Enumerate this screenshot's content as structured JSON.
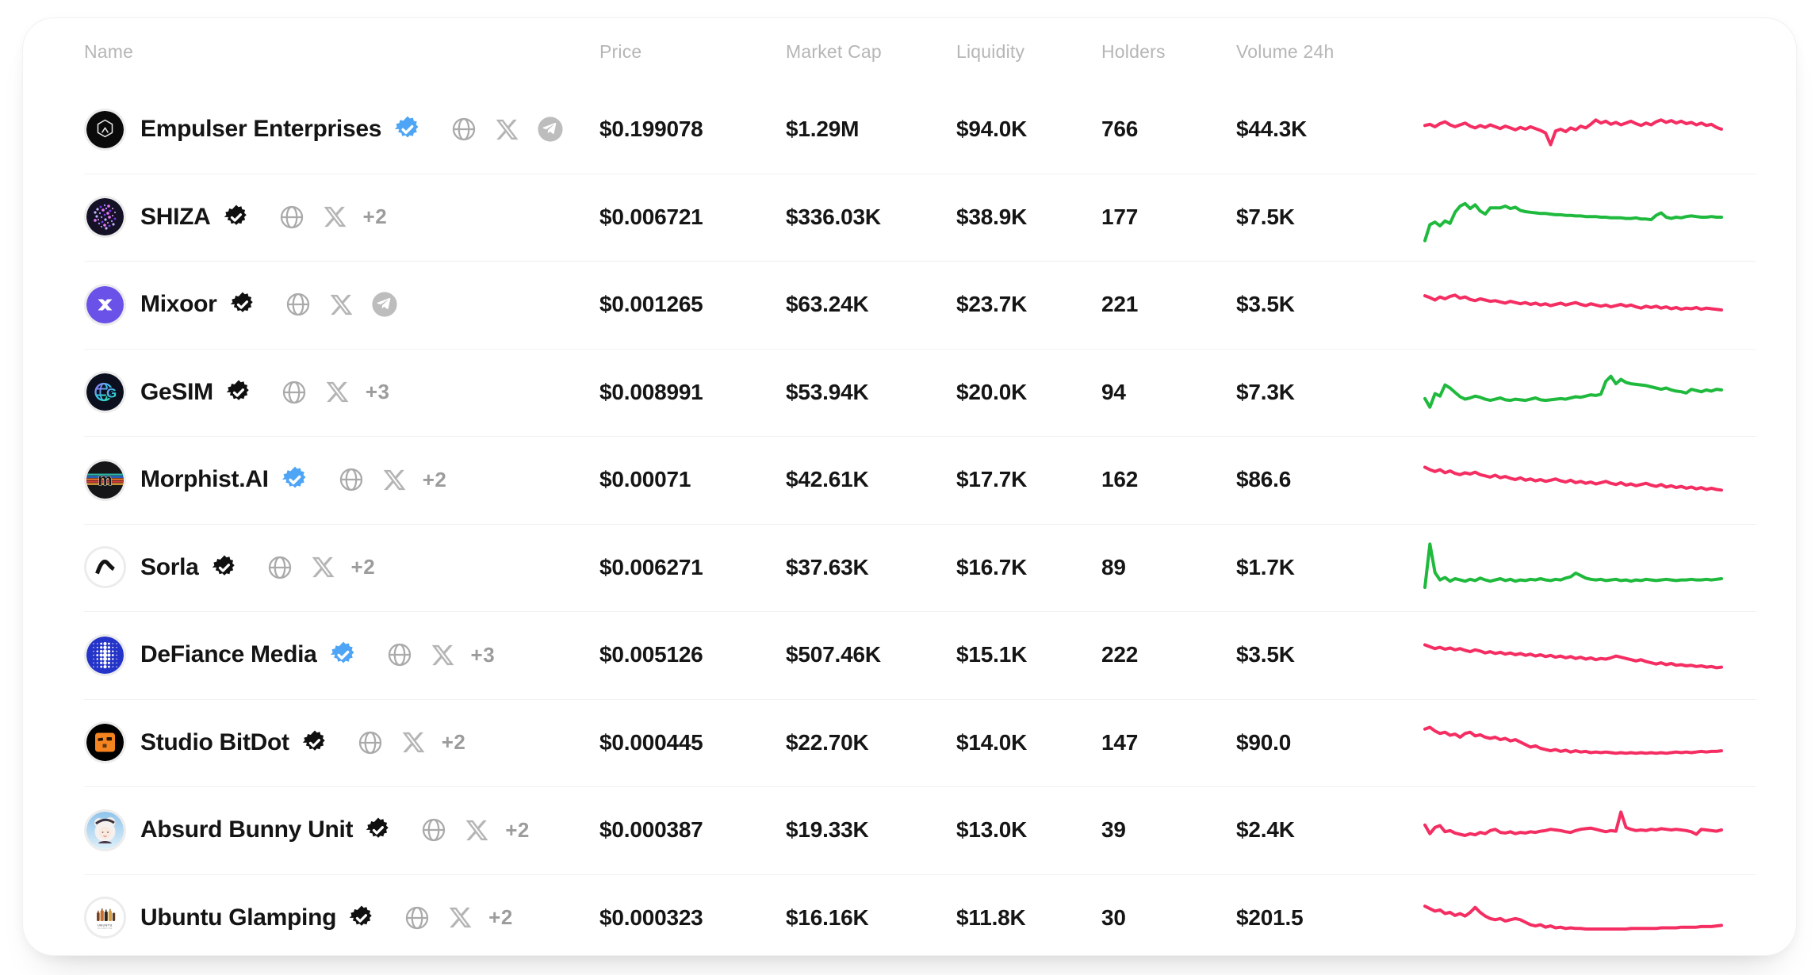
{
  "colors": {
    "pink": "#F42E62",
    "green": "#1FBA3D",
    "verified_blue": "#4FA5F5",
    "verified_black": "#101010",
    "header_text": "#B6B6B6",
    "row_text": "#151515",
    "icon_gray": "#AAAAAA",
    "divider": "#F1F1F1"
  },
  "icons": {
    "website": "globe-icon",
    "x": "x-logo-icon",
    "telegram": "telegram-icon",
    "verified_blue": "verified-badge-blue-icon",
    "verified_black": "verified-badge-black-icon"
  },
  "table": {
    "columns": [
      {
        "key": "name",
        "label": "Name"
      },
      {
        "key": "price",
        "label": "Price"
      },
      {
        "key": "market_cap",
        "label": "Market Cap"
      },
      {
        "key": "liquidity",
        "label": "Liquidity"
      },
      {
        "key": "holders",
        "label": "Holders"
      },
      {
        "key": "volume_24h",
        "label": "Volume 24h"
      },
      {
        "key": "chart",
        "label": ""
      }
    ],
    "rows": [
      {
        "name": "Empulser Enterprises",
        "avatar": "empulser",
        "verified": "blue",
        "socials": [
          "website",
          "x",
          "telegram"
        ],
        "more": "",
        "price": "$0.199078",
        "market_cap": "$1.29M",
        "liquidity": "$94.0K",
        "holders": "766",
        "volume_24h": "$44.3K",
        "trend": "down"
      },
      {
        "name": "SHIZA",
        "avatar": "shiza",
        "verified": "black",
        "socials": [
          "website",
          "x"
        ],
        "more": "+2",
        "price": "$0.006721",
        "market_cap": "$336.03K",
        "liquidity": "$38.9K",
        "holders": "177",
        "volume_24h": "$7.5K",
        "trend": "up"
      },
      {
        "name": "Mixoor",
        "avatar": "mixoor",
        "verified": "black",
        "socials": [
          "website",
          "x",
          "telegram"
        ],
        "more": "",
        "price": "$0.001265",
        "market_cap": "$63.24K",
        "liquidity": "$23.7K",
        "holders": "221",
        "volume_24h": "$3.5K",
        "trend": "down"
      },
      {
        "name": "GeSIM",
        "avatar": "gesim",
        "verified": "black",
        "socials": [
          "website",
          "x"
        ],
        "more": "+3",
        "price": "$0.008991",
        "market_cap": "$53.94K",
        "liquidity": "$20.0K",
        "holders": "94",
        "volume_24h": "$7.3K",
        "trend": "up"
      },
      {
        "name": "Morphist.AI",
        "avatar": "morphist",
        "verified": "blue",
        "socials": [
          "website",
          "x"
        ],
        "more": "+2",
        "price": "$0.00071",
        "market_cap": "$42.61K",
        "liquidity": "$17.7K",
        "holders": "162",
        "volume_24h": "$86.6",
        "trend": "down"
      },
      {
        "name": "Sorla",
        "avatar": "sorla",
        "verified": "black",
        "socials": [
          "website",
          "x"
        ],
        "more": "+2",
        "price": "$0.006271",
        "market_cap": "$37.63K",
        "liquidity": "$16.7K",
        "holders": "89",
        "volume_24h": "$1.7K",
        "trend": "up"
      },
      {
        "name": "DeFiance Media",
        "avatar": "defiance",
        "verified": "blue",
        "socials": [
          "website",
          "x"
        ],
        "more": "+3",
        "price": "$0.005126",
        "market_cap": "$507.46K",
        "liquidity": "$15.1K",
        "holders": "222",
        "volume_24h": "$3.5K",
        "trend": "down"
      },
      {
        "name": "Studio BitDot",
        "avatar": "studiobitdot",
        "verified": "black",
        "socials": [
          "website",
          "x"
        ],
        "more": "+2",
        "price": "$0.000445",
        "market_cap": "$22.70K",
        "liquidity": "$14.0K",
        "holders": "147",
        "volume_24h": "$90.0",
        "trend": "down"
      },
      {
        "name": "Absurd Bunny Unit",
        "avatar": "absurdbunny",
        "verified": "black",
        "socials": [
          "website",
          "x"
        ],
        "more": "+2",
        "price": "$0.000387",
        "market_cap": "$19.33K",
        "liquidity": "$13.0K",
        "holders": "39",
        "volume_24h": "$2.4K",
        "trend": "down"
      },
      {
        "name": "Ubuntu Glamping",
        "avatar": "ubuntuglamping",
        "verified": "black",
        "socials": [
          "website",
          "x"
        ],
        "more": "+2",
        "price": "$0.000323",
        "market_cap": "$16.16K",
        "liquidity": "$11.8K",
        "holders": "30",
        "volume_24h": "$201.5",
        "trend": "down"
      }
    ]
  },
  "chart_data": {
    "type": "line",
    "note": "24h price sparklines, no axes or labels shown",
    "series": [
      {
        "name": "Empulser Enterprises",
        "color": "#F42E62",
        "values": [
          56,
          58,
          54,
          59,
          62,
          57,
          54,
          57,
          60,
          55,
          52,
          56,
          53,
          57,
          54,
          51,
          55,
          52,
          49,
          53,
          50,
          54,
          51,
          48,
          44,
          25,
          47,
          50,
          46,
          52,
          49,
          55,
          52,
          58,
          65,
          60,
          63,
          58,
          61,
          57,
          60,
          63,
          59,
          56,
          60,
          57,
          62,
          65,
          61,
          64,
          60,
          63,
          59,
          61,
          57,
          60,
          56,
          58,
          53,
          50
        ]
      },
      {
        "name": "SHIZA",
        "color": "#1FBA3D",
        "values": [
          12,
          38,
          42,
          36,
          44,
          40,
          58,
          68,
          72,
          64,
          70,
          60,
          55,
          65,
          65,
          65,
          68,
          64,
          66,
          61,
          59,
          58,
          57,
          56,
          56,
          55,
          54,
          54,
          53,
          53,
          52,
          52,
          51,
          51,
          51,
          50,
          50,
          49,
          49,
          49,
          48,
          48,
          49,
          47,
          47,
          46,
          53,
          57,
          50,
          48,
          50,
          49,
          51,
          52,
          51,
          50,
          50,
          51,
          50,
          50
        ]
      },
      {
        "name": "Mixoor",
        "color": "#F42E62",
        "values": [
          64,
          61,
          57,
          62,
          59,
          63,
          65,
          60,
          62,
          58,
          56,
          59,
          57,
          55,
          56,
          54,
          52,
          55,
          53,
          51,
          53,
          50,
          52,
          49,
          51,
          48,
          50,
          52,
          49,
          51,
          53,
          50,
          48,
          51,
          49,
          47,
          49,
          46,
          48,
          50,
          47,
          49,
          46,
          44,
          47,
          45,
          47,
          44,
          46,
          43,
          45,
          42,
          44,
          43,
          45,
          42,
          44,
          43,
          42,
          41
        ]
      },
      {
        "name": "GeSIM",
        "color": "#1FBA3D",
        "values": [
          40,
          26,
          48,
          44,
          62,
          57,
          50,
          43,
          39,
          41,
          44,
          42,
          39,
          37,
          39,
          41,
          38,
          37,
          39,
          38,
          37,
          39,
          41,
          38,
          37,
          38,
          39,
          40,
          39,
          41,
          43,
          42,
          44,
          46,
          45,
          47,
          68,
          76,
          64,
          71,
          66,
          64,
          63,
          62,
          61,
          59,
          57,
          55,
          57,
          54,
          52,
          51,
          49,
          55,
          53,
          51,
          54,
          52,
          55,
          54
        ]
      },
      {
        "name": "Morphist.AI",
        "color": "#F42E62",
        "values": [
          70,
          66,
          63,
          66,
          61,
          64,
          60,
          58,
          61,
          59,
          62,
          58,
          56,
          54,
          57,
          53,
          55,
          52,
          50,
          53,
          49,
          51,
          48,
          50,
          47,
          49,
          51,
          48,
          46,
          49,
          45,
          47,
          44,
          46,
          43,
          45,
          47,
          44,
          42,
          45,
          41,
          43,
          40,
          42,
          44,
          41,
          39,
          42,
          38,
          40,
          37,
          39,
          36,
          38,
          35,
          37,
          34,
          36,
          34,
          33
        ]
      },
      {
        "name": "Sorla",
        "color": "#1FBA3D",
        "values": [
          18,
          88,
          42,
          30,
          34,
          28,
          32,
          30,
          28,
          31,
          29,
          33,
          30,
          28,
          30,
          32,
          29,
          31,
          28,
          30,
          29,
          31,
          30,
          32,
          30,
          29,
          31,
          30,
          33,
          35,
          41,
          37,
          33,
          31,
          30,
          31,
          29,
          30,
          31,
          29,
          30,
          28,
          30,
          29,
          31,
          30,
          29,
          30,
          31,
          30,
          29,
          30,
          30,
          31,
          30,
          30,
          31,
          30,
          31,
          32
        ]
      },
      {
        "name": "DeFiance Media",
        "color": "#F42E62",
        "values": [
          66,
          63,
          60,
          62,
          59,
          61,
          58,
          60,
          57,
          55,
          58,
          56,
          53,
          55,
          52,
          54,
          51,
          53,
          50,
          52,
          49,
          51,
          48,
          50,
          47,
          49,
          46,
          48,
          45,
          47,
          44,
          46,
          43,
          45,
          42,
          44,
          43,
          45,
          48,
          46,
          44,
          42,
          40,
          42,
          39,
          37,
          35,
          37,
          34,
          36,
          33,
          34,
          32,
          33,
          31,
          32,
          30,
          31,
          29,
          30
        ]
      },
      {
        "name": "Studio BitDot",
        "color": "#F42E62",
        "values": [
          72,
          75,
          69,
          65,
          67,
          62,
          64,
          59,
          65,
          67,
          61,
          63,
          59,
          57,
          59,
          55,
          57,
          53,
          55,
          51,
          47,
          43,
          45,
          41,
          39,
          37,
          39,
          36,
          38,
          35,
          37,
          35,
          36,
          34,
          35,
          34,
          35,
          34,
          33,
          34,
          33,
          34,
          33,
          34,
          33,
          34,
          33,
          34,
          33,
          34,
          35,
          34,
          35,
          34,
          35,
          36,
          35,
          36,
          36,
          37
        ]
      },
      {
        "name": "Absurd Bunny Unit",
        "color": "#F42E62",
        "values": [
          58,
          44,
          54,
          57,
          47,
          49,
          45,
          43,
          41,
          44,
          42,
          46,
          44,
          49,
          51,
          46,
          45,
          47,
          44,
          46,
          45,
          47,
          46,
          48,
          49,
          51,
          50,
          49,
          47,
          46,
          49,
          51,
          52,
          53,
          51,
          49,
          47,
          49,
          48,
          79,
          54,
          51,
          49,
          50,
          49,
          51,
          50,
          52,
          51,
          50,
          51,
          50,
          49,
          47,
          43,
          51,
          50,
          49,
          48,
          50
        ]
      },
      {
        "name": "Ubuntu Glamping",
        "color": "#F42E62",
        "values": [
          69,
          65,
          61,
          63,
          57,
          59,
          54,
          57,
          53,
          59,
          67,
          59,
          53,
          49,
          47,
          49,
          45,
          47,
          49,
          47,
          43,
          39,
          37,
          39,
          35,
          37,
          34,
          35,
          33,
          34,
          33,
          33,
          32,
          32,
          32,
          32,
          32,
          32,
          32,
          32,
          32,
          33,
          33,
          33,
          33,
          33,
          33,
          34,
          34,
          34,
          34,
          35,
          35,
          35,
          35,
          36,
          36,
          36,
          37,
          38
        ]
      }
    ]
  }
}
